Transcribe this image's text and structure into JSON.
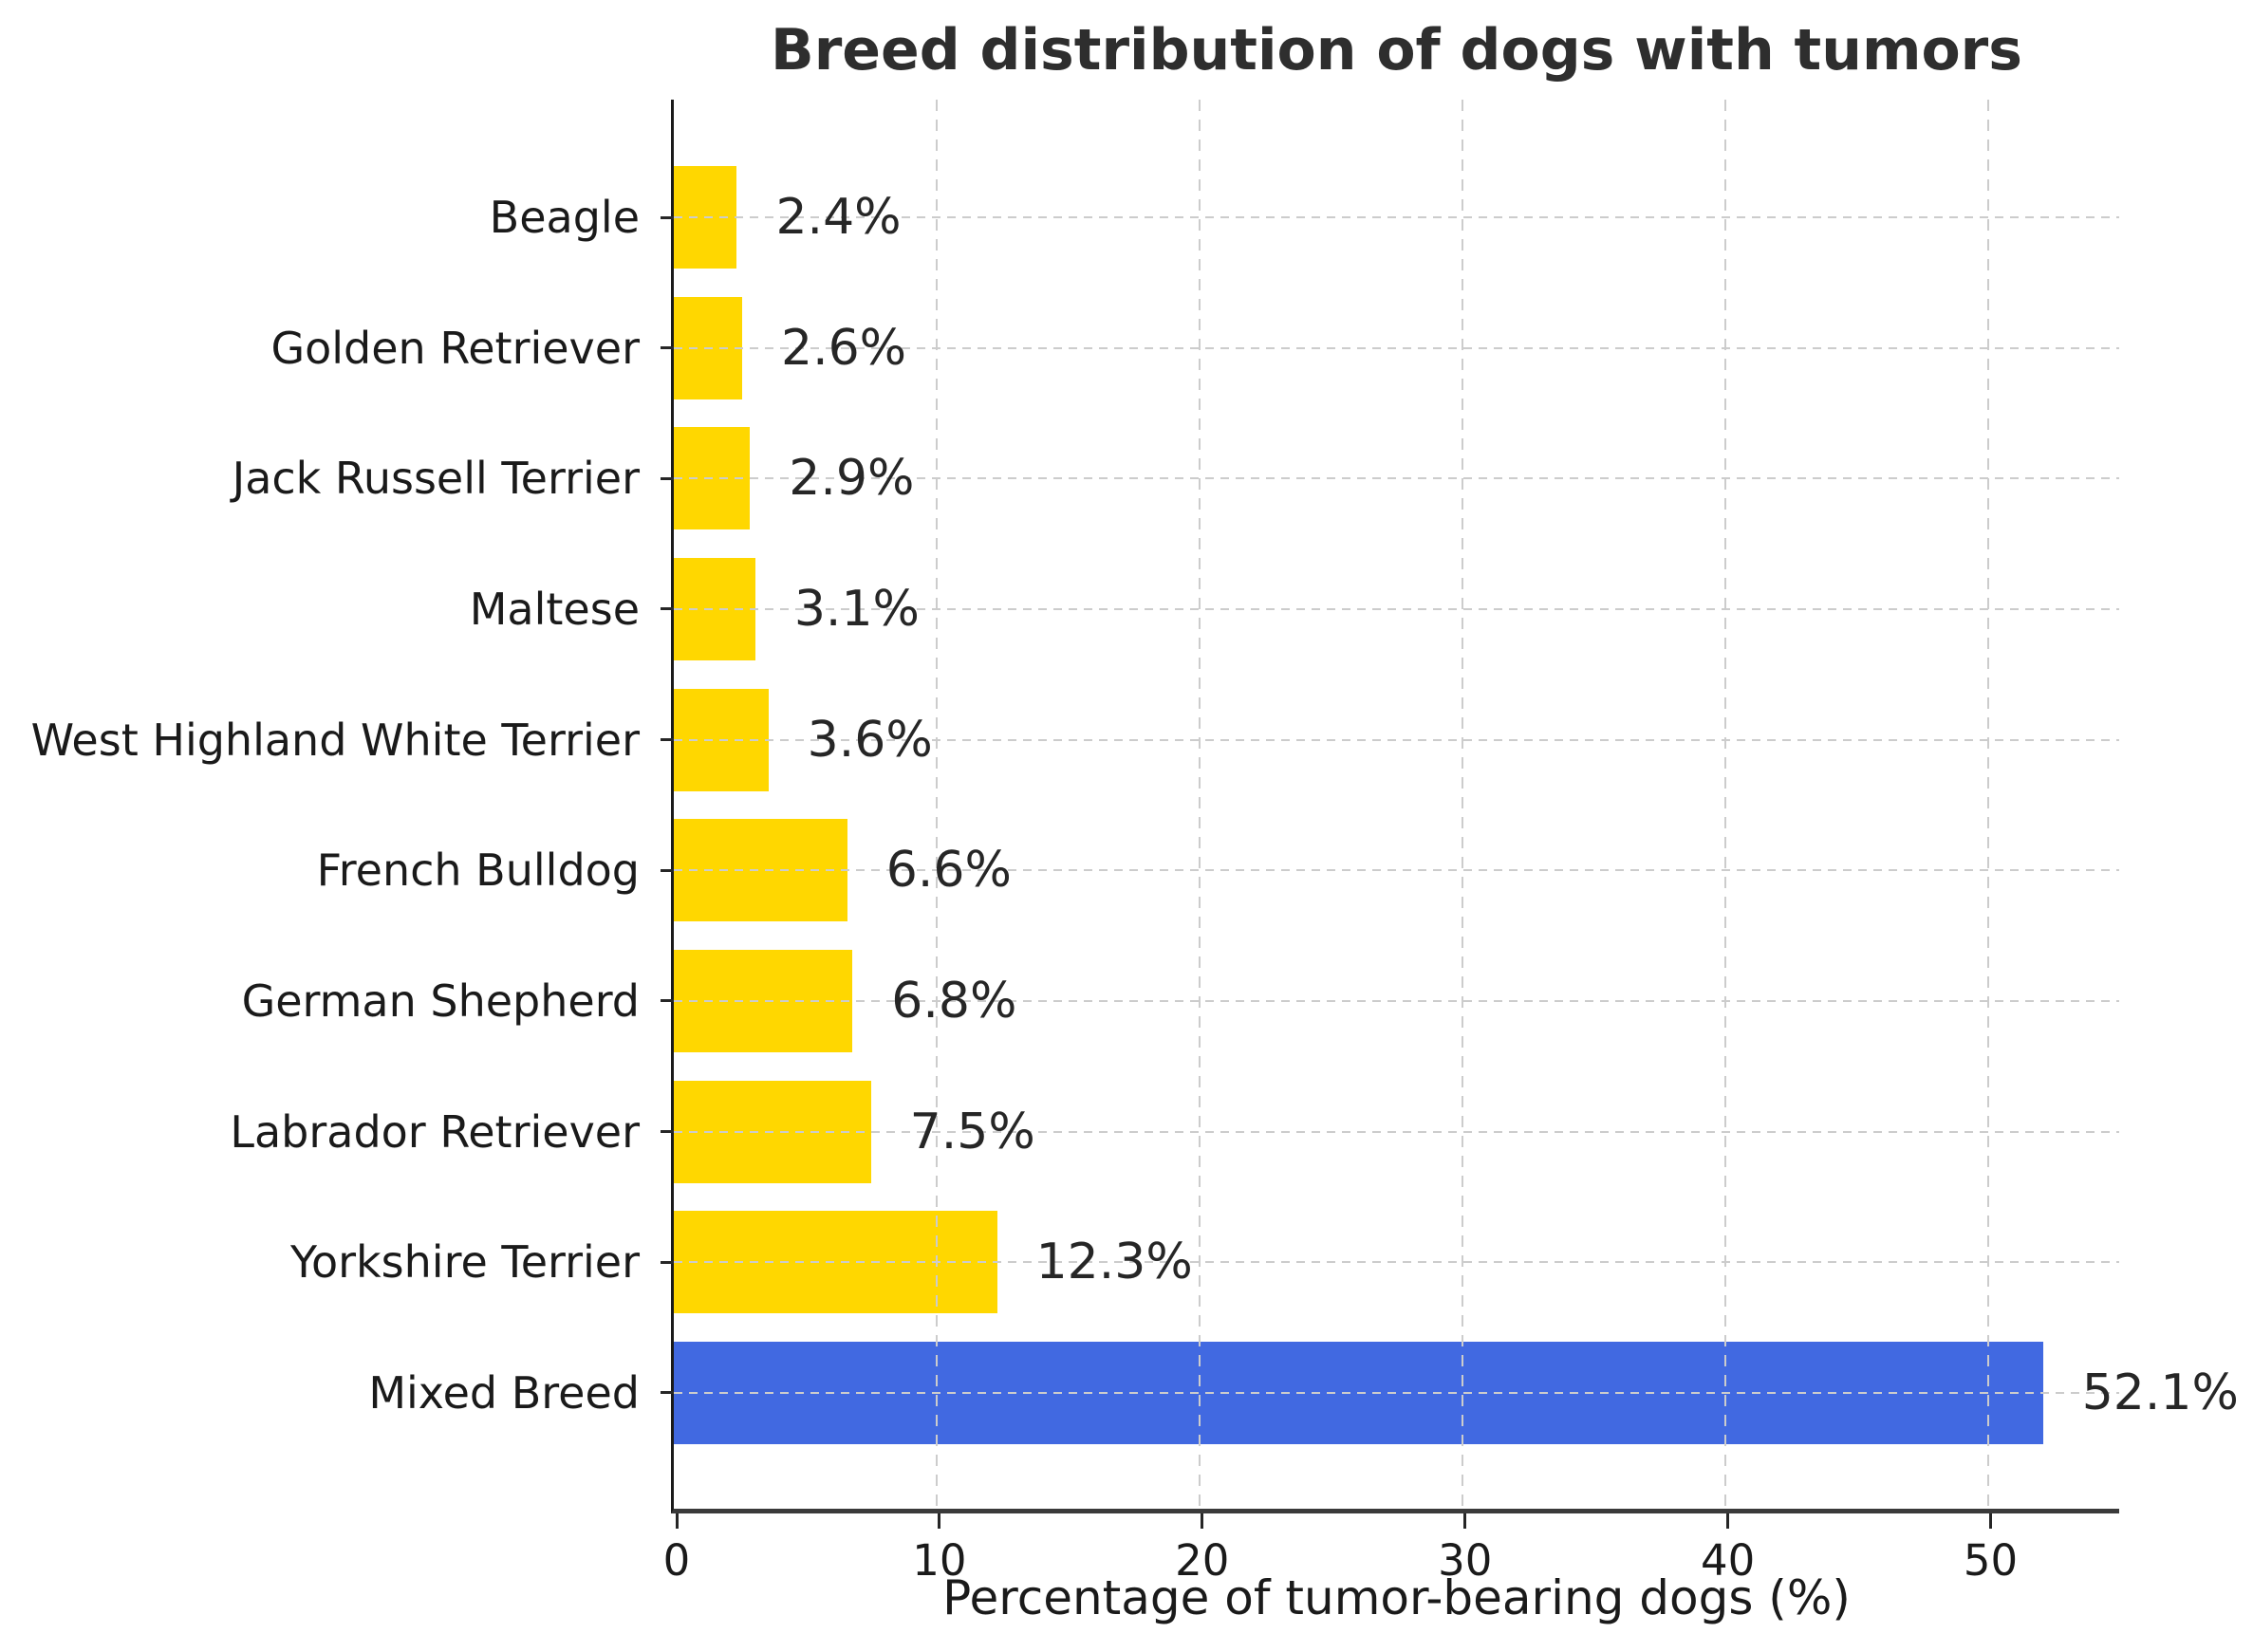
{
  "figure": {
    "background": "#ffffff"
  },
  "chart_data": {
    "type": "bar",
    "orientation": "horizontal",
    "title": "Breed distribution of dogs with tumors",
    "xlabel": "Percentage of tumor-bearing dogs (%)",
    "categories": [
      "Beagle",
      "Golden Retriever",
      "Jack Russell Terrier",
      "Maltese",
      "West Highland White Terrier",
      "French Bulldog",
      "German Shepherd",
      "Labrador Retriever",
      "Yorkshire Terrier",
      "Mixed Breed"
    ],
    "values": [
      2.4,
      2.6,
      2.9,
      3.1,
      3.6,
      6.6,
      6.8,
      7.5,
      12.3,
      52.1
    ],
    "value_labels": [
      "2.4%",
      "2.6%",
      "2.9%",
      "3.1%",
      "3.6%",
      "6.6%",
      "6.8%",
      "7.5%",
      "12.3%",
      "52.1%"
    ],
    "xticks": [
      0,
      10,
      20,
      30,
      40,
      50
    ],
    "xtick_labels": [
      "0",
      "10",
      "20",
      "30",
      "40",
      "50"
    ],
    "xlim": [
      0,
      55
    ],
    "grid": "dashed-both-axes-over-bars",
    "legend_position": "none",
    "highlight_category": "Mixed Breed",
    "colors": {
      "bar_default": "#FFD700",
      "bar_highlight": "#4169E1",
      "title": "#2e2e2e",
      "text": "#1a1a1a",
      "value_text": "#262626",
      "grid": "#cccccc",
      "spine": "#1a1a1a",
      "bottom_spine": "#3a3a3a",
      "tick": "#262626"
    }
  }
}
